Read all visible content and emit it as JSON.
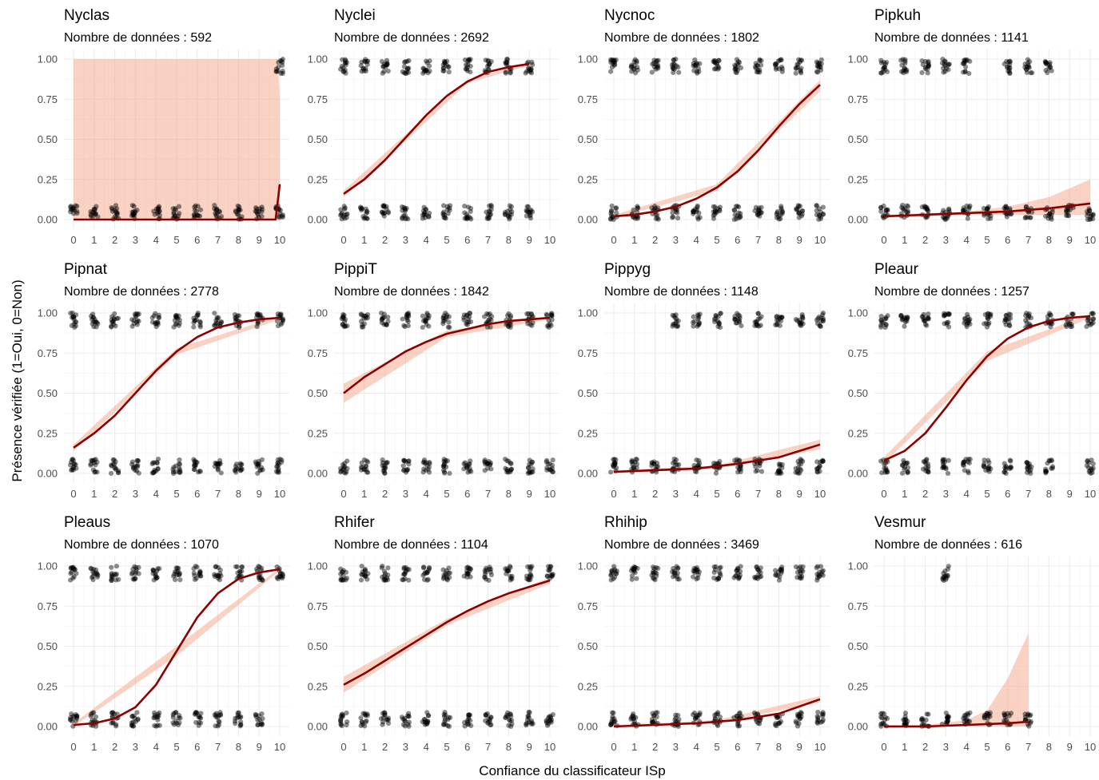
{
  "figure": {
    "xlabel": "Confiance du classificateur ISp",
    "ylabel": "Présence vérifiée (1=Oui, 0=Non)",
    "subtitle_prefix": "Nombre de données : "
  },
  "colors": {
    "fit_line": "#8b0000",
    "ribbon": "#f4a58a",
    "points": "#000000",
    "grid_major": "#ebebeb",
    "grid_minor": "#f5f5f5"
  },
  "chart_data": [
    {
      "type": "scatter",
      "title": "Nyclas",
      "n": 592,
      "xlim": [
        0,
        10
      ],
      "ylim": [
        0,
        1
      ],
      "x_ticks": [
        0,
        1,
        2,
        3,
        4,
        5,
        6,
        7,
        8,
        9,
        10
      ],
      "y_ticks": [
        "0.00",
        "0.25",
        "0.50",
        "0.75",
        "1.00"
      ],
      "points_y0": [
        0,
        1,
        2,
        3,
        4,
        5,
        6,
        7,
        8,
        9,
        10
      ],
      "points_y1": [
        10
      ],
      "fit_line": {
        "x": [
          0,
          1,
          2,
          3,
          4,
          5,
          6,
          7,
          8,
          9,
          9.8,
          10
        ],
        "y": [
          0,
          0,
          0,
          0,
          0,
          0,
          0,
          0,
          0,
          0,
          0,
          0.22
        ]
      },
      "ribbon": {
        "x": [
          0,
          9.9,
          10
        ],
        "lower": [
          0,
          0,
          0
        ],
        "upper": [
          1,
          1,
          0.75
        ]
      }
    },
    {
      "type": "scatter",
      "title": "Nyclei",
      "n": 2692,
      "xlim": [
        0,
        10
      ],
      "ylim": [
        0,
        1
      ],
      "x_ticks": [
        0,
        1,
        2,
        3,
        4,
        5,
        6,
        7,
        8,
        9,
        10
      ],
      "y_ticks": [
        "0.00",
        "0.25",
        "0.50",
        "0.75",
        "1.00"
      ],
      "points_y0": [
        0,
        1,
        2,
        3,
        4,
        5,
        6,
        7,
        8,
        9
      ],
      "points_y1": [
        0,
        1,
        2,
        3,
        4,
        5,
        6,
        7,
        8,
        9
      ],
      "fit_line": {
        "x": [
          0,
          1,
          2,
          3,
          4,
          5,
          6,
          7,
          8,
          9
        ],
        "y": [
          0.16,
          0.25,
          0.37,
          0.51,
          0.65,
          0.77,
          0.86,
          0.92,
          0.95,
          0.97
        ]
      },
      "ribbon": {
        "x": [
          0,
          3,
          6,
          9
        ],
        "lower": [
          0.14,
          0.49,
          0.85,
          0.96
        ],
        "upper": [
          0.18,
          0.53,
          0.87,
          0.98
        ]
      }
    },
    {
      "type": "scatter",
      "title": "Nycnoc",
      "n": 1802,
      "xlim": [
        0,
        10
      ],
      "ylim": [
        0,
        1
      ],
      "x_ticks": [
        0,
        1,
        2,
        3,
        4,
        5,
        6,
        7,
        8,
        9,
        10
      ],
      "y_ticks": [
        "0.00",
        "0.25",
        "0.50",
        "0.75",
        "1.00"
      ],
      "points_y0": [
        0,
        1,
        2,
        3,
        4,
        5,
        6,
        7,
        8,
        9,
        10
      ],
      "points_y1": [
        0,
        1,
        2,
        3,
        4,
        5,
        6,
        7,
        8,
        9,
        10
      ],
      "fit_line": {
        "x": [
          0,
          1,
          2,
          3,
          4,
          5,
          6,
          7,
          8,
          9,
          10
        ],
        "y": [
          0.02,
          0.03,
          0.05,
          0.08,
          0.13,
          0.2,
          0.3,
          0.43,
          0.58,
          0.72,
          0.84
        ]
      },
      "ribbon": {
        "x": [
          0,
          5,
          10
        ],
        "lower": [
          0.01,
          0.18,
          0.8
        ],
        "upper": [
          0.03,
          0.22,
          0.87
        ]
      }
    },
    {
      "type": "scatter",
      "title": "Pipkuh",
      "n": 1141,
      "xlim": [
        0,
        10
      ],
      "ylim": [
        0,
        1
      ],
      "x_ticks": [
        0,
        1,
        2,
        3,
        4,
        5,
        6,
        7,
        8,
        9,
        10
      ],
      "y_ticks": [
        "0.00",
        "0.25",
        "0.50",
        "0.75",
        "1.00"
      ],
      "points_y0": [
        0,
        1,
        2,
        3,
        4,
        5,
        6,
        7,
        8,
        9,
        10
      ],
      "points_y1": [
        0,
        1,
        2,
        3,
        4,
        6,
        7,
        8
      ],
      "fit_line": {
        "x": [
          0,
          2,
          4,
          6,
          8,
          10
        ],
        "y": [
          0.02,
          0.03,
          0.04,
          0.05,
          0.07,
          0.1
        ]
      },
      "ribbon": {
        "x": [
          0,
          2,
          4,
          6,
          8,
          10
        ],
        "lower": [
          0.01,
          0.02,
          0.03,
          0.03,
          0.03,
          0.03
        ],
        "upper": [
          0.03,
          0.04,
          0.05,
          0.08,
          0.14,
          0.25
        ]
      }
    },
    {
      "type": "scatter",
      "title": "Pipnat",
      "n": 2778,
      "xlim": [
        0,
        10
      ],
      "ylim": [
        0,
        1
      ],
      "x_ticks": [
        0,
        1,
        2,
        3,
        4,
        5,
        6,
        7,
        8,
        9,
        10
      ],
      "y_ticks": [
        "0.00",
        "0.25",
        "0.50",
        "0.75",
        "1.00"
      ],
      "points_y0": [
        0,
        1,
        2,
        3,
        4,
        5,
        6,
        7,
        8,
        9,
        10
      ],
      "points_y1": [
        0,
        1,
        2,
        3,
        4,
        5,
        6,
        7,
        8,
        9,
        10
      ],
      "fit_line": {
        "x": [
          0,
          1,
          2,
          3,
          4,
          5,
          6,
          7,
          8,
          9,
          10
        ],
        "y": [
          0.16,
          0.25,
          0.36,
          0.5,
          0.64,
          0.76,
          0.85,
          0.91,
          0.94,
          0.96,
          0.97
        ]
      },
      "ribbon": {
        "x": [
          0,
          5,
          10
        ],
        "lower": [
          0.14,
          0.74,
          0.96
        ],
        "upper": [
          0.18,
          0.78,
          0.98
        ]
      }
    },
    {
      "type": "scatter",
      "title": "PippiT",
      "n": 1842,
      "xlim": [
        0,
        10
      ],
      "ylim": [
        0,
        1
      ],
      "x_ticks": [
        0,
        1,
        2,
        3,
        4,
        5,
        6,
        7,
        8,
        9,
        10
      ],
      "y_ticks": [
        "0.00",
        "0.25",
        "0.50",
        "0.75",
        "1.00"
      ],
      "points_y0": [
        0,
        1,
        2,
        3,
        4,
        5,
        6,
        7,
        8,
        9,
        10
      ],
      "points_y1": [
        0,
        1,
        2,
        3,
        4,
        5,
        6,
        7,
        8,
        9,
        10
      ],
      "fit_line": {
        "x": [
          0,
          1,
          2,
          3,
          4,
          5,
          6,
          7,
          8,
          9,
          10
        ],
        "y": [
          0.5,
          0.6,
          0.68,
          0.76,
          0.82,
          0.87,
          0.9,
          0.93,
          0.95,
          0.96,
          0.97
        ]
      },
      "ribbon": {
        "x": [
          0,
          5,
          10
        ],
        "lower": [
          0.44,
          0.85,
          0.96
        ],
        "upper": [
          0.56,
          0.89,
          0.98
        ]
      }
    },
    {
      "type": "scatter",
      "title": "Pippyg",
      "n": 1148,
      "xlim": [
        0,
        10
      ],
      "ylim": [
        0,
        1
      ],
      "x_ticks": [
        0,
        1,
        2,
        3,
        4,
        5,
        6,
        7,
        8,
        9,
        10
      ],
      "y_ticks": [
        "0.00",
        "0.25",
        "0.50",
        "0.75",
        "1.00"
      ],
      "points_y0": [
        0,
        1,
        2,
        3,
        4,
        5,
        6,
        7,
        8,
        9,
        10
      ],
      "points_y1": [
        3,
        4,
        5,
        6,
        7,
        8,
        9,
        10
      ],
      "fit_line": {
        "x": [
          0,
          2,
          4,
          6,
          8,
          10
        ],
        "y": [
          0.01,
          0.02,
          0.03,
          0.06,
          0.1,
          0.18
        ]
      },
      "ribbon": {
        "x": [
          0,
          5,
          10
        ],
        "lower": [
          0.0,
          0.03,
          0.15
        ],
        "upper": [
          0.02,
          0.05,
          0.21
        ]
      }
    },
    {
      "type": "scatter",
      "title": "Pleaur",
      "n": 1257,
      "xlim": [
        0,
        10
      ],
      "ylim": [
        0,
        1
      ],
      "x_ticks": [
        0,
        1,
        2,
        3,
        4,
        5,
        6,
        7,
        8,
        9,
        10
      ],
      "y_ticks": [
        "0.00",
        "0.25",
        "0.50",
        "0.75",
        "1.00"
      ],
      "points_y0": [
        0,
        1,
        2,
        3,
        4,
        5,
        6,
        7,
        8,
        10
      ],
      "points_y1": [
        0,
        1,
        2,
        3,
        4,
        5,
        6,
        7,
        8,
        9,
        10
      ],
      "fit_line": {
        "x": [
          0,
          1,
          2,
          3,
          4,
          5,
          6,
          7,
          8,
          9,
          10
        ],
        "y": [
          0.08,
          0.14,
          0.25,
          0.41,
          0.58,
          0.73,
          0.84,
          0.91,
          0.95,
          0.97,
          0.98
        ]
      },
      "ribbon": {
        "x": [
          0,
          5,
          10
        ],
        "lower": [
          0.06,
          0.7,
          0.97
        ],
        "upper": [
          0.1,
          0.76,
          0.99
        ]
      }
    },
    {
      "type": "scatter",
      "title": "Pleaus",
      "n": 1070,
      "xlim": [
        0,
        10
      ],
      "ylim": [
        0,
        1
      ],
      "x_ticks": [
        0,
        1,
        2,
        3,
        4,
        5,
        6,
        7,
        8,
        9,
        10
      ],
      "y_ticks": [
        "0.00",
        "0.25",
        "0.50",
        "0.75",
        "1.00"
      ],
      "points_y0": [
        0,
        1,
        2,
        3,
        4,
        5,
        6,
        7,
        8,
        9
      ],
      "points_y1": [
        0,
        1,
        2,
        3,
        4,
        5,
        6,
        7,
        8,
        9,
        10
      ],
      "fit_line": {
        "x": [
          0,
          1,
          2,
          3,
          4,
          5,
          6,
          7,
          8,
          9,
          10
        ],
        "y": [
          0.01,
          0.02,
          0.05,
          0.12,
          0.26,
          0.47,
          0.68,
          0.83,
          0.92,
          0.96,
          0.98
        ]
      },
      "ribbon": {
        "x": [
          0,
          5,
          10
        ],
        "lower": [
          0.0,
          0.44,
          0.97
        ],
        "upper": [
          0.02,
          0.5,
          0.99
        ]
      }
    },
    {
      "type": "scatter",
      "title": "Rhifer",
      "n": 1104,
      "xlim": [
        0,
        10
      ],
      "ylim": [
        0,
        1
      ],
      "x_ticks": [
        0,
        1,
        2,
        3,
        4,
        5,
        6,
        7,
        8,
        9,
        10
      ],
      "y_ticks": [
        "0.00",
        "0.25",
        "0.50",
        "0.75",
        "1.00"
      ],
      "points_y0": [
        0,
        1,
        2,
        3,
        4,
        5,
        6,
        7,
        8,
        9,
        10
      ],
      "points_y1": [
        0,
        1,
        2,
        3,
        4,
        5,
        6,
        7,
        8,
        9,
        10
      ],
      "fit_line": {
        "x": [
          0,
          1,
          2,
          3,
          4,
          5,
          6,
          7,
          8,
          9,
          10
        ],
        "y": [
          0.26,
          0.33,
          0.41,
          0.49,
          0.57,
          0.65,
          0.72,
          0.78,
          0.83,
          0.87,
          0.91
        ]
      },
      "ribbon": {
        "x": [
          0,
          5,
          10
        ],
        "lower": [
          0.21,
          0.63,
          0.89
        ],
        "upper": [
          0.31,
          0.67,
          0.93
        ]
      }
    },
    {
      "type": "scatter",
      "title": "Rhihip",
      "n": 3469,
      "xlim": [
        0,
        10
      ],
      "ylim": [
        0,
        1
      ],
      "x_ticks": [
        0,
        1,
        2,
        3,
        4,
        5,
        6,
        7,
        8,
        9,
        10
      ],
      "y_ticks": [
        "0.00",
        "0.25",
        "0.50",
        "0.75",
        "1.00"
      ],
      "points_y0": [
        0,
        1,
        2,
        3,
        4,
        5,
        6,
        7,
        8,
        9,
        10
      ],
      "points_y1": [
        0,
        1,
        2,
        3,
        4,
        5,
        6,
        7,
        8,
        9,
        10
      ],
      "fit_line": {
        "x": [
          0,
          2,
          4,
          6,
          8,
          10
        ],
        "y": [
          0.0,
          0.01,
          0.02,
          0.04,
          0.08,
          0.17
        ]
      },
      "ribbon": {
        "x": [
          0,
          5,
          10
        ],
        "lower": [
          0.0,
          0.02,
          0.15
        ],
        "upper": [
          0.01,
          0.04,
          0.19
        ]
      }
    },
    {
      "type": "scatter",
      "title": "Vesmur",
      "n": 616,
      "xlim": [
        0,
        10
      ],
      "ylim": [
        0,
        1
      ],
      "x_ticks": [
        0,
        1,
        2,
        3,
        4,
        5,
        6,
        7,
        8,
        9,
        10
      ],
      "y_ticks": [
        "0.00",
        "0.25",
        "0.50",
        "0.75",
        "1.00"
      ],
      "points_y0": [
        0,
        1,
        2,
        3,
        4,
        5,
        6,
        7
      ],
      "points_y1": [
        3
      ],
      "fit_line": {
        "x": [
          0,
          2,
          4,
          6,
          7
        ],
        "y": [
          0.0,
          0.0,
          0.01,
          0.02,
          0.03
        ]
      },
      "ribbon": {
        "x": [
          0,
          2,
          4,
          5,
          6,
          7
        ],
        "lower": [
          0,
          0,
          0,
          0,
          0,
          0
        ],
        "upper": [
          0.01,
          0.01,
          0.04,
          0.1,
          0.3,
          0.58
        ]
      }
    }
  ]
}
